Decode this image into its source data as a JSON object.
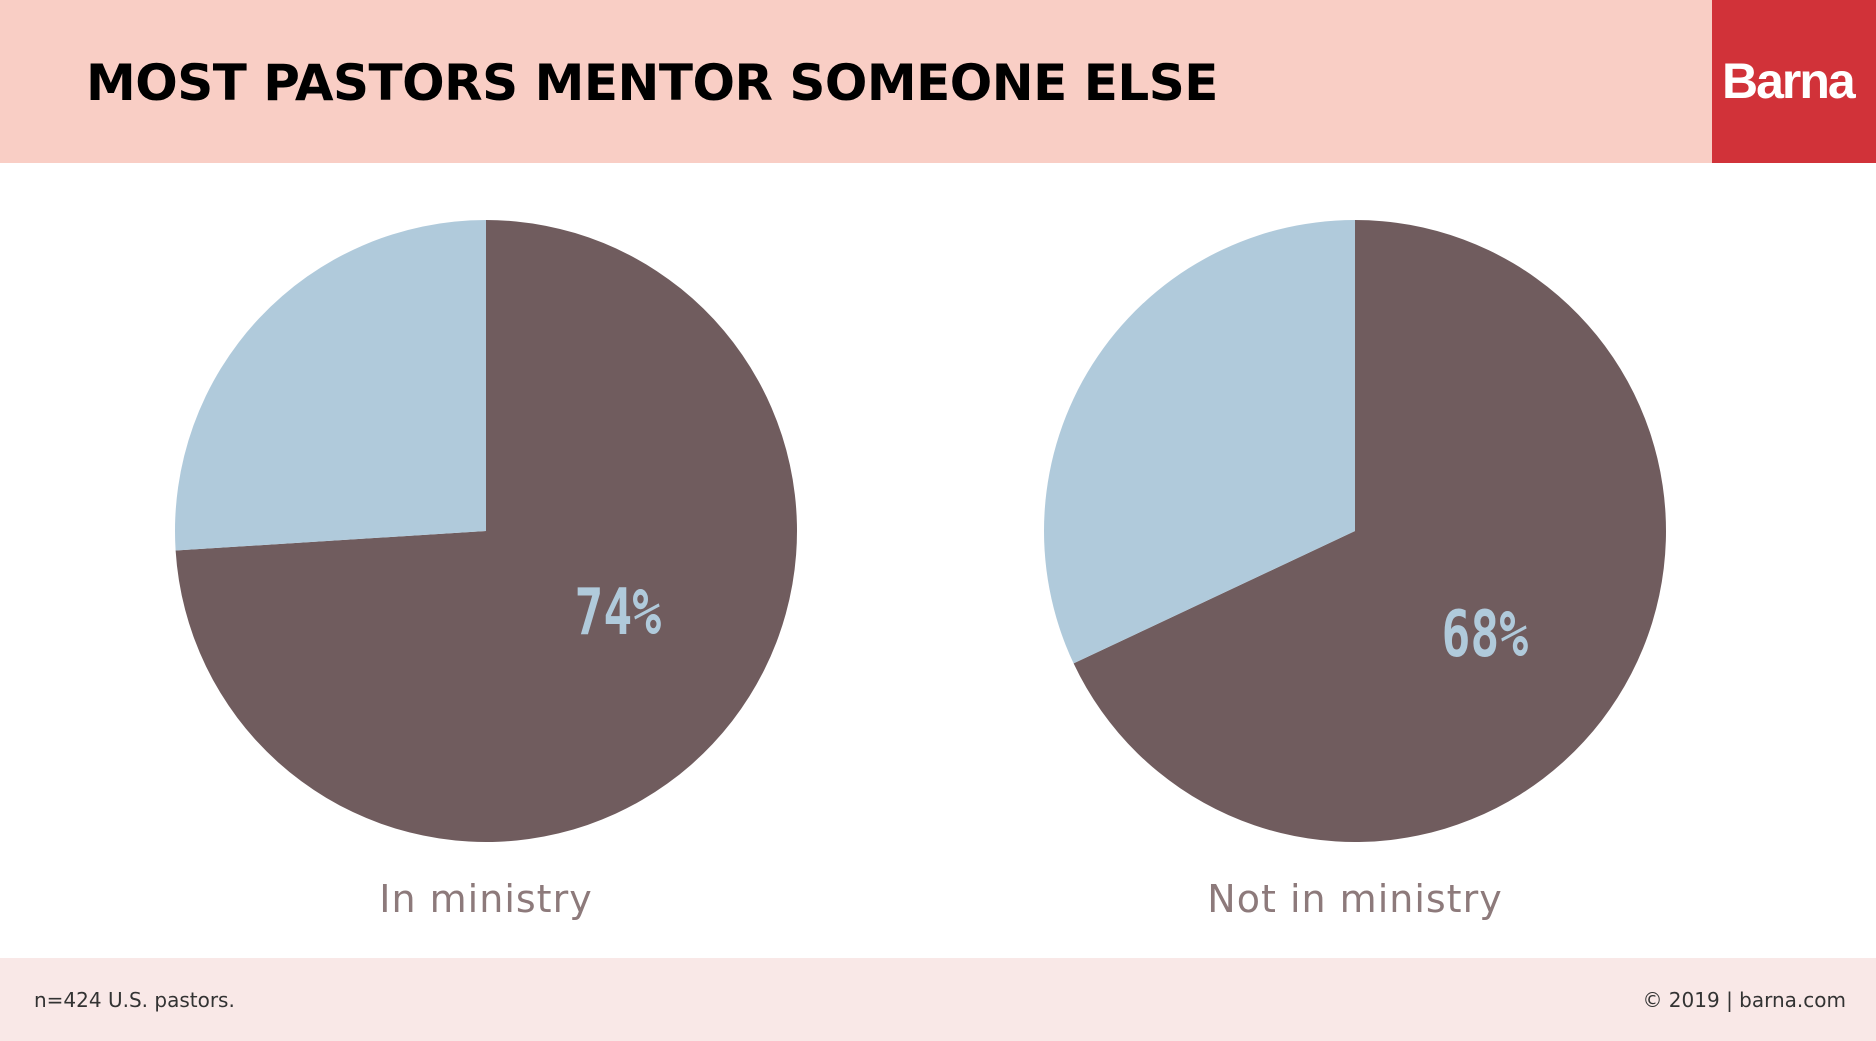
{
  "header": {
    "title": "MOST PASTORS MENTOR SOMEONE ELSE",
    "logo": "Barna"
  },
  "footer": {
    "note": "n=424 U.S. pastors.",
    "copyright": "© 2019 | barna.com"
  },
  "colors": {
    "primary": "#705c5e",
    "secondary": "#b0cadb",
    "header_bg": "#f9cec5",
    "logo_bg": "#d13239"
  },
  "chart_data": [
    {
      "type": "pie",
      "title": "In ministry",
      "values": [
        74,
        26
      ],
      "data_labels": [
        "74%",
        ""
      ]
    },
    {
      "type": "pie",
      "title": "Not in ministry",
      "values": [
        68,
        32
      ],
      "data_labels": [
        "68%",
        ""
      ]
    }
  ]
}
